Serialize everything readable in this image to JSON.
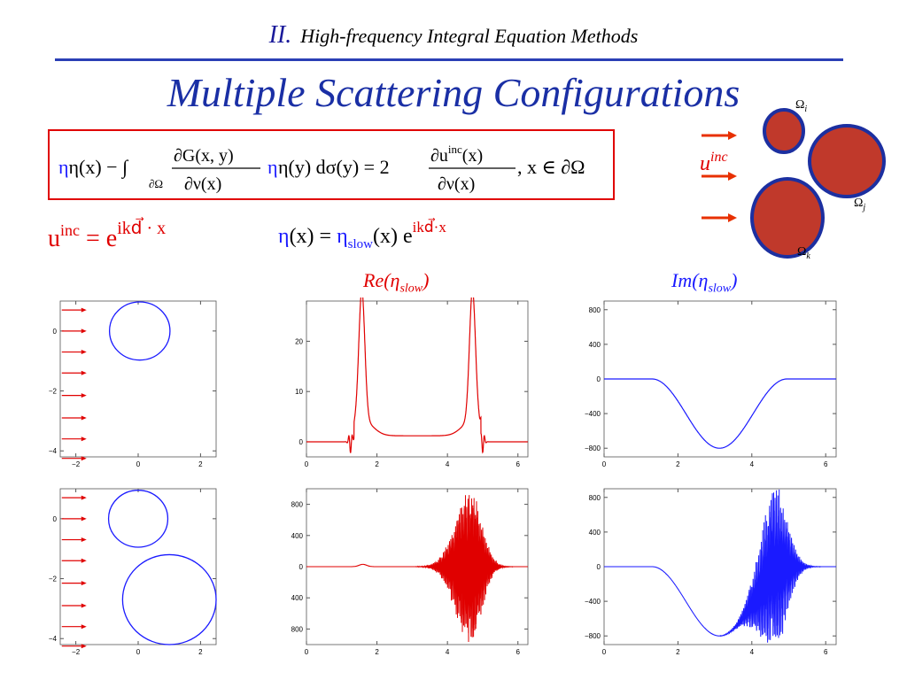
{
  "header": {
    "section_number": "II.",
    "section_title": "High-frequency Integral Equation Methods"
  },
  "slide": {
    "title": "Multiple Scattering Configurations"
  },
  "equations": {
    "integral_eq": {
      "lhs_eta": "η(x) − ∫",
      "domain": "∂Ω",
      "g_num": "∂G(x, y)",
      "g_den": "∂ν(x)",
      "rest": "η(y) dσ(y) = 2",
      "u_num": "∂u",
      "u_sup": "inc",
      "u_arg": "(x)",
      "u_den": "∂ν(x)",
      "where": ",   x ∈ ∂Ω"
    },
    "incident_wave": {
      "u": "u",
      "sup": "inc",
      "eq": " = e",
      "exp": "ikd⃗ · x"
    },
    "ansatz": {
      "eta": "η",
      "x": "(x) = ",
      "eta_slow": "η",
      "slow_sub": "slow",
      "x2": "(x) e",
      "exp": "ikd⃗·x"
    }
  },
  "diagram": {
    "u_label": "u",
    "u_sup": "inc",
    "omega_i": "Ω",
    "sub_i": "i",
    "omega_j": "Ω",
    "sub_j": "j",
    "omega_k": "Ω",
    "sub_k": "k"
  },
  "column_labels": {
    "real": "Re(η",
    "real_sub": "slow",
    "imag": "Im(η",
    "imag_sub": "slow",
    "close": ")"
  },
  "colors": {
    "red": "#e00000",
    "blue": "#1a1aff",
    "arrow": "#e83000",
    "disk_fill": "#c0392b",
    "disk_edge": "#1c2fa0"
  },
  "chart_data": [
    {
      "type": "line",
      "title": "",
      "panel": "geometry-one-circle",
      "xlim": [
        -2.5,
        2.5
      ],
      "ylim": [
        -4.2,
        1.0
      ],
      "xticks": [
        -2,
        0,
        2
      ],
      "yticks": [
        -4,
        -2,
        0
      ],
      "circles": [
        {
          "cx": 0.05,
          "cy": 0.0,
          "r": 0.97
        }
      ],
      "arrows_y": [
        0.7,
        0.0,
        -0.7,
        -1.4,
        -2.15,
        -2.9,
        -3.6,
        -4.25
      ]
    },
    {
      "type": "line",
      "title": "",
      "panel": "real-one-circle",
      "xlim": [
        0,
        6.283
      ],
      "ylim": [
        -3,
        28
      ],
      "xticks": [
        0,
        2,
        4,
        6
      ],
      "yticks": [
        0,
        10,
        20
      ],
      "series": [
        {
          "values": "x in [0,6.283]: peaks ≈27 at 1.57 and 4.71, plateau ≈1.2 between, oscillatory dips near 1.25 and 5.0"
        }
      ]
    },
    {
      "type": "line",
      "title": "",
      "panel": "imag-one-circle",
      "xlim": [
        0,
        6.283
      ],
      "ylim": [
        -900,
        900
      ],
      "xticks": [
        0,
        2,
        4,
        6
      ],
      "yticks": [
        -800,
        -400,
        0,
        400,
        800
      ],
      "series": [
        {
          "values": "0 for x<1.3, smooth dip to -800 at x=3.14, back to 0 at 4.9"
        }
      ]
    },
    {
      "type": "line",
      "title": "",
      "panel": "geometry-two-circles",
      "xlim": [
        -2.5,
        2.5
      ],
      "ylim": [
        -4.2,
        1.0
      ],
      "xticks": [
        -2,
        0,
        2
      ],
      "yticks": [
        -4,
        -2,
        0
      ],
      "circles": [
        {
          "cx": 0.0,
          "cy": 0.0,
          "r": 0.95
        },
        {
          "cx": 1.0,
          "cy": -2.7,
          "r": 1.5
        }
      ],
      "arrows_y": [
        0.7,
        0.0,
        -0.7,
        -1.4,
        -2.15,
        -2.9,
        -3.6,
        -4.25
      ]
    },
    {
      "type": "line",
      "title": "",
      "panel": "real-two-circles",
      "xlim": [
        0,
        6.283
      ],
      "ylim": [
        -1000,
        1000
      ],
      "xticks": [
        0,
        2,
        4,
        6
      ],
      "yticks": [
        "800",
        "400",
        "0",
        "400",
        "800"
      ],
      "series": [
        {
          "values": "≈0 until 3.1, oscillation growing to ±1000 near 4.6, decaying to 0 by 6.0; small bump at 1.6"
        }
      ]
    },
    {
      "type": "line",
      "title": "",
      "panel": "imag-two-circles",
      "xlim": [
        0,
        6.283
      ],
      "ylim": [
        -900,
        900
      ],
      "xticks": [
        0,
        2,
        4,
        6
      ],
      "yticks": [
        -800,
        -400,
        0,
        400,
        800
      ],
      "series": [
        {
          "values": "0 until 1.3, smooth dip to -800 at 3.14, then strong oscillations ±900 near 4.7 decaying by 6.0"
        }
      ]
    }
  ]
}
